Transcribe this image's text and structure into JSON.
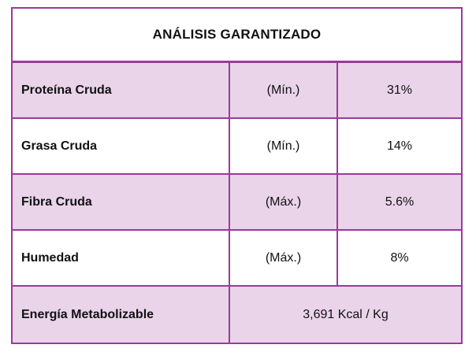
{
  "title": "ANÁLISIS GARANTIZADO",
  "rows": [
    {
      "name": "Proteína Cruda",
      "qualifier": "(Mín.)",
      "value": "31%"
    },
    {
      "name": "Grasa Cruda",
      "qualifier": "(Mín.)",
      "value": "14%"
    },
    {
      "name": "Fibra Cruda",
      "qualifier": "(Máx.)",
      "value": "5.6%"
    },
    {
      "name": "Humedad",
      "qualifier": "(Máx.)",
      "value": "8%"
    }
  ],
  "energy": {
    "name": "Energía Metabolizable",
    "value": "3,691 Kcal / Kg"
  },
  "colors": {
    "border": "#9b3a98",
    "shaded_row": "#ead4ea"
  }
}
